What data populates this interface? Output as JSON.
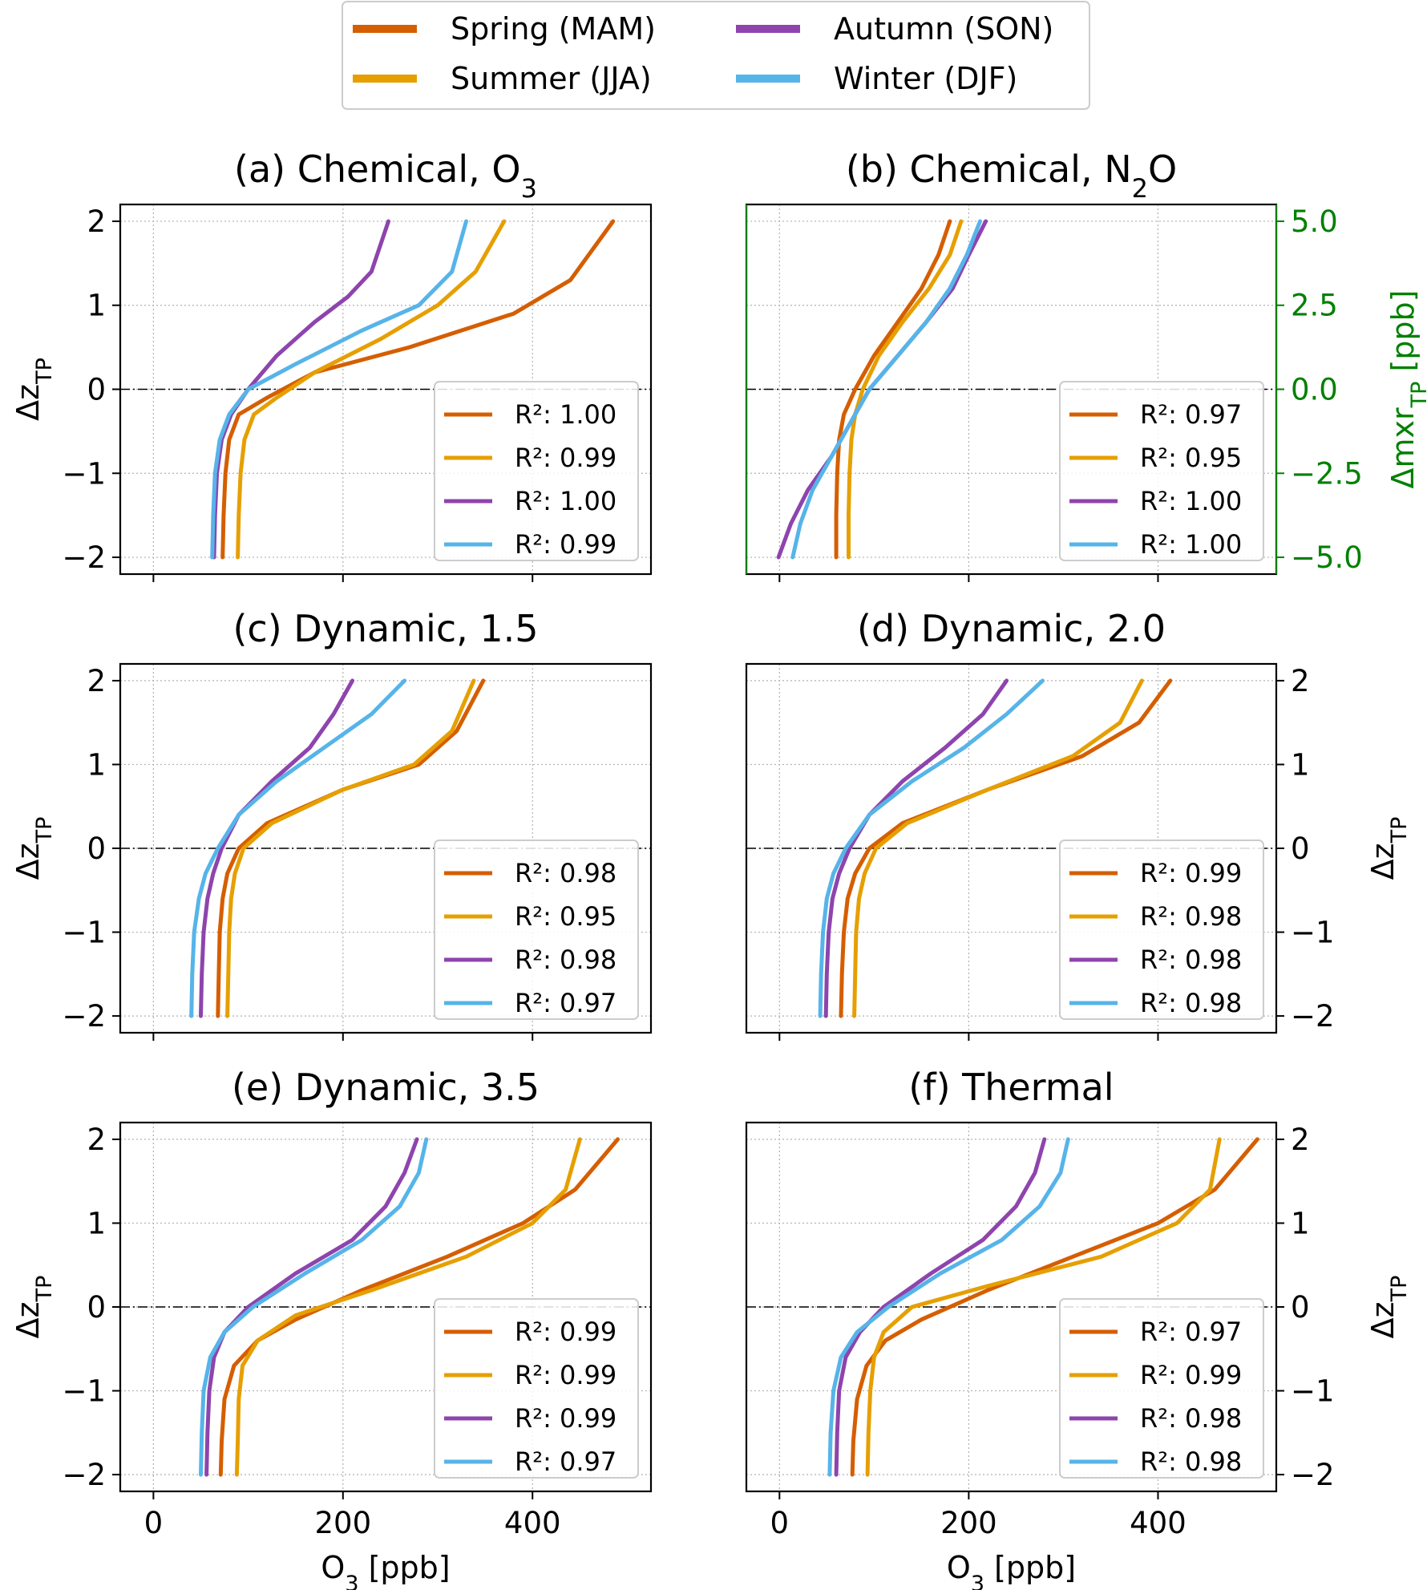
{
  "legend": {
    "entries": [
      {
        "name": "Spring (MAM)",
        "color": "#D55E00"
      },
      {
        "name": "Summer (JJA)",
        "color": "#E69F00"
      },
      {
        "name": "Autumn (SON)",
        "color": "#8E44AD"
      },
      {
        "name": "Winter (DJF)",
        "color": "#56B4E9"
      }
    ]
  },
  "axis_labels": {
    "x": "O₃ [ppb]",
    "y_base": "Δz",
    "y_sub": "TP",
    "right_n2o_base": "Δmxr",
    "right_n2o_sub": "TP",
    "right_n2o_unit": " [ppb]"
  },
  "chart_data": [
    {
      "panel": "a",
      "type": "line",
      "title_base": "(a) Chemical, O",
      "title_sub": "3",
      "xlim": [
        -35,
        525
      ],
      "ylim": [
        -2.2,
        2.2
      ],
      "xticks": [
        0,
        200,
        400
      ],
      "yticks": [
        -2,
        -1,
        0,
        1,
        2
      ],
      "series": [
        {
          "season": "Spring (MAM)",
          "x": [
            73,
            74,
            76,
            80,
            90,
            120,
            170,
            270,
            380,
            440,
            485
          ],
          "y": [
            -2,
            -1.5,
            -1,
            -0.6,
            -0.3,
            -0.1,
            0.2,
            0.5,
            0.9,
            1.3,
            2
          ]
        },
        {
          "season": "Summer (JJA)",
          "x": [
            89,
            90,
            92,
            96,
            106,
            130,
            170,
            240,
            300,
            340,
            370
          ],
          "y": [
            -2,
            -1.5,
            -1,
            -0.6,
            -0.3,
            -0.1,
            0.2,
            0.6,
            1,
            1.4,
            2
          ]
        },
        {
          "season": "Autumn (SON)",
          "x": [
            64,
            65,
            67,
            72,
            82,
            100,
            130,
            170,
            205,
            230,
            248
          ],
          "y": [
            -2,
            -1.5,
            -1,
            -0.6,
            -0.3,
            0,
            0.4,
            0.8,
            1.1,
            1.4,
            2
          ]
        },
        {
          "season": "Winter (DJF)",
          "x": [
            62,
            63,
            65,
            70,
            80,
            100,
            150,
            220,
            280,
            315,
            330
          ],
          "y": [
            -2,
            -1.5,
            -1,
            -0.6,
            -0.3,
            0,
            0.3,
            0.7,
            1,
            1.4,
            2
          ]
        }
      ],
      "r2_labels": [
        "R²: 1.00",
        "R²: 0.99",
        "R²: 1.00",
        "R²: 0.99"
      ]
    },
    {
      "panel": "b",
      "type": "line",
      "title_base": "(b) Chemical, N",
      "title_sub": "2",
      "title_tail": "O",
      "xlim": [
        -35,
        525
      ],
      "ylim": [
        -2.2,
        2.2
      ],
      "xticks": [
        0,
        200,
        400
      ],
      "yticks": [
        -2,
        -1,
        0,
        1,
        2
      ],
      "right_ticks": [
        "−5.0",
        "−2.5",
        "0.0",
        "2.5",
        "5.0"
      ],
      "series": [
        {
          "season": "Spring (MAM)",
          "x": [
            60,
            60,
            61,
            63,
            68,
            80,
            100,
            125,
            150,
            168,
            180
          ],
          "y": [
            -2,
            -1.5,
            -1,
            -0.6,
            -0.3,
            0,
            0.4,
            0.8,
            1.2,
            1.6,
            2
          ]
        },
        {
          "season": "Summer (JJA)",
          "x": [
            73,
            73,
            74,
            76,
            80,
            88,
            105,
            130,
            158,
            180,
            192
          ],
          "y": [
            -2,
            -1.5,
            -1,
            -0.6,
            -0.3,
            0,
            0.4,
            0.8,
            1.2,
            1.6,
            2
          ]
        },
        {
          "season": "Autumn (SON)",
          "x": [
            -1,
            12,
            30,
            55,
            75,
            95,
            125,
            155,
            183,
            200,
            218
          ],
          "y": [
            -2,
            -1.6,
            -1.2,
            -0.8,
            -0.4,
            0,
            0.4,
            0.8,
            1.2,
            1.6,
            2
          ]
        },
        {
          "season": "Winter (DJF)",
          "x": [
            14,
            22,
            35,
            55,
            75,
            95,
            125,
            155,
            180,
            198,
            212
          ],
          "y": [
            -2,
            -1.6,
            -1.2,
            -0.8,
            -0.4,
            0,
            0.4,
            0.8,
            1.2,
            1.6,
            2
          ]
        }
      ],
      "r2_labels": [
        "R²: 0.97",
        "R²: 0.95",
        "R²: 1.00",
        "R²: 1.00"
      ]
    },
    {
      "panel": "c",
      "type": "line",
      "title": "(c) Dynamic, 1.5",
      "xlim": [
        -35,
        525
      ],
      "ylim": [
        -2.2,
        2.2
      ],
      "xticks": [
        0,
        200,
        400
      ],
      "yticks": [
        -2,
        -1,
        0,
        1,
        2
      ],
      "series": [
        {
          "season": "Spring (MAM)",
          "x": [
            68,
            69,
            70,
            73,
            78,
            90,
            120,
            200,
            280,
            320,
            348
          ],
          "y": [
            -2,
            -1.5,
            -1,
            -0.6,
            -0.3,
            0,
            0.3,
            0.7,
            1,
            1.4,
            2
          ]
        },
        {
          "season": "Summer (JJA)",
          "x": [
            78,
            79,
            80,
            82,
            86,
            95,
            125,
            200,
            275,
            315,
            338
          ],
          "y": [
            -2,
            -1.5,
            -1,
            -0.6,
            -0.3,
            0,
            0.3,
            0.7,
            1,
            1.4,
            2
          ]
        },
        {
          "season": "Autumn (SON)",
          "x": [
            50,
            51,
            53,
            57,
            63,
            72,
            90,
            125,
            165,
            190,
            210
          ],
          "y": [
            -2,
            -1.5,
            -1,
            -0.6,
            -0.3,
            0,
            0.4,
            0.8,
            1.2,
            1.6,
            2
          ]
        },
        {
          "season": "Winter (DJF)",
          "x": [
            40,
            41,
            43,
            48,
            55,
            68,
            90,
            130,
            180,
            230,
            265
          ],
          "y": [
            -2,
            -1.5,
            -1,
            -0.6,
            -0.3,
            0,
            0.4,
            0.8,
            1.2,
            1.6,
            2
          ]
        }
      ],
      "r2_labels": [
        "R²: 0.98",
        "R²: 0.95",
        "R²: 0.98",
        "R²: 0.97"
      ]
    },
    {
      "panel": "d",
      "type": "line",
      "title": "(d) Dynamic, 2.0",
      "xlim": [
        -35,
        525
      ],
      "ylim": [
        -2.2,
        2.2
      ],
      "xticks": [
        0,
        200,
        400
      ],
      "yticks": [
        -2,
        -1,
        0,
        1,
        2
      ],
      "series": [
        {
          "season": "Spring (MAM)",
          "x": [
            65,
            66,
            68,
            72,
            80,
            95,
            130,
            220,
            320,
            380,
            413
          ],
          "y": [
            -2,
            -1.5,
            -1,
            -0.6,
            -0.3,
            0,
            0.3,
            0.7,
            1.1,
            1.5,
            2
          ]
        },
        {
          "season": "Summer (JJA)",
          "x": [
            79,
            80,
            81,
            84,
            90,
            102,
            135,
            220,
            310,
            360,
            383
          ],
          "y": [
            -2,
            -1.5,
            -1,
            -0.6,
            -0.3,
            0,
            0.3,
            0.7,
            1.1,
            1.5,
            2
          ]
        },
        {
          "season": "Autumn (SON)",
          "x": [
            49,
            50,
            52,
            56,
            63,
            74,
            95,
            130,
            175,
            215,
            240
          ],
          "y": [
            -2,
            -1.5,
            -1,
            -0.6,
            -0.3,
            0,
            0.4,
            0.8,
            1.2,
            1.6,
            2
          ]
        },
        {
          "season": "Winter (DJF)",
          "x": [
            43,
            44,
            46,
            50,
            57,
            70,
            95,
            140,
            195,
            240,
            278
          ],
          "y": [
            -2,
            -1.5,
            -1,
            -0.6,
            -0.3,
            0,
            0.4,
            0.8,
            1.2,
            1.6,
            2
          ]
        }
      ],
      "r2_labels": [
        "R²: 0.99",
        "R²: 0.98",
        "R²: 0.98",
        "R²: 0.98"
      ]
    },
    {
      "panel": "e",
      "type": "line",
      "title": "(e) Dynamic, 3.5",
      "xlim": [
        -35,
        525
      ],
      "ylim": [
        -2.2,
        2.2
      ],
      "xticks": [
        0,
        200,
        400
      ],
      "yticks": [
        -2,
        -1,
        0,
        1,
        2
      ],
      "series": [
        {
          "season": "Spring (MAM)",
          "x": [
            71,
            72,
            75,
            85,
            110,
            150,
            220,
            310,
            390,
            445,
            490
          ],
          "y": [
            -2,
            -1.6,
            -1.1,
            -0.7,
            -0.4,
            -0.15,
            0.2,
            0.6,
            1,
            1.4,
            2
          ]
        },
        {
          "season": "Summer (JJA)",
          "x": [
            88,
            89,
            90,
            94,
            110,
            150,
            230,
            330,
            400,
            435,
            450
          ],
          "y": [
            -2,
            -1.6,
            -1.1,
            -0.7,
            -0.4,
            -0.1,
            0.2,
            0.6,
            1,
            1.4,
            2
          ]
        },
        {
          "season": "Autumn (SON)",
          "x": [
            56,
            57,
            59,
            64,
            75,
            100,
            150,
            210,
            245,
            265,
            278
          ],
          "y": [
            -2,
            -1.5,
            -1,
            -0.6,
            -0.3,
            0,
            0.4,
            0.8,
            1.2,
            1.6,
            2
          ]
        },
        {
          "season": "Winter (DJF)",
          "x": [
            50,
            51,
            53,
            60,
            75,
            105,
            160,
            220,
            260,
            280,
            288
          ],
          "y": [
            -2,
            -1.5,
            -1,
            -0.6,
            -0.3,
            0,
            0.4,
            0.8,
            1.2,
            1.6,
            2
          ]
        }
      ],
      "r2_labels": [
        "R²: 0.99",
        "R²: 0.99",
        "R²: 0.99",
        "R²: 0.97"
      ]
    },
    {
      "panel": "f",
      "type": "line",
      "title": "(f) Thermal",
      "xlim": [
        -35,
        525
      ],
      "ylim": [
        -2.2,
        2.2
      ],
      "xticks": [
        0,
        200,
        400
      ],
      "yticks": [
        -2,
        -1,
        0,
        1,
        2
      ],
      "series": [
        {
          "season": "Spring (MAM)",
          "x": [
            77,
            78,
            82,
            92,
            112,
            150,
            220,
            310,
            400,
            460,
            505
          ],
          "y": [
            -2,
            -1.6,
            -1.1,
            -0.7,
            -0.4,
            -0.15,
            0.2,
            0.6,
            1,
            1.4,
            2
          ]
        },
        {
          "season": "Summer (JJA)",
          "x": [
            93,
            94,
            96,
            100,
            110,
            140,
            220,
            340,
            420,
            455,
            465
          ],
          "y": [
            -2,
            -1.5,
            -1,
            -0.6,
            -0.3,
            0,
            0.25,
            0.6,
            1,
            1.4,
            2
          ]
        },
        {
          "season": "Autumn (SON)",
          "x": [
            60,
            61,
            63,
            70,
            85,
            110,
            160,
            215,
            250,
            270,
            280
          ],
          "y": [
            -2,
            -1.5,
            -1,
            -0.6,
            -0.3,
            0,
            0.4,
            0.8,
            1.2,
            1.6,
            2
          ]
        },
        {
          "season": "Winter (DJF)",
          "x": [
            53,
            54,
            57,
            65,
            82,
            115,
            170,
            235,
            275,
            297,
            305
          ],
          "y": [
            -2,
            -1.5,
            -1,
            -0.6,
            -0.3,
            0,
            0.4,
            0.8,
            1.2,
            1.6,
            2
          ]
        }
      ],
      "r2_labels": [
        "R²: 0.97",
        "R²: 0.99",
        "R²: 0.98",
        "R²: 0.98"
      ]
    }
  ]
}
